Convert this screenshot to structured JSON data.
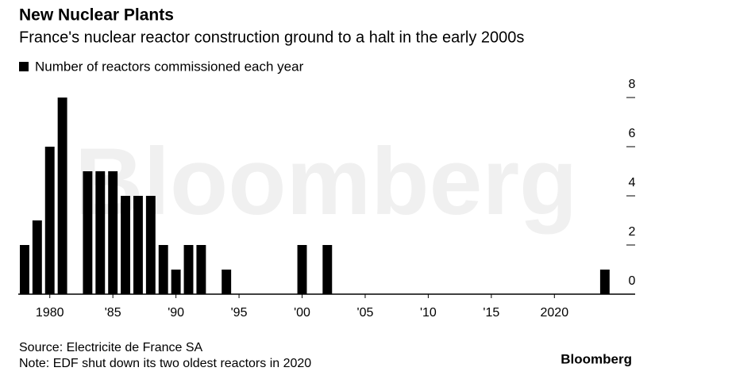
{
  "chart_data": {
    "type": "bar",
    "title": "New Nuclear Plants",
    "subtitle": "France's nuclear reactor construction ground to a halt in the early 2000s",
    "x": [
      1978,
      1979,
      1980,
      1981,
      1982,
      1983,
      1984,
      1985,
      1986,
      1987,
      1988,
      1989,
      1990,
      1991,
      1992,
      1993,
      1994,
      1995,
      1996,
      1997,
      1998,
      1999,
      2000,
      2001,
      2002,
      2003,
      2004,
      2005,
      2006,
      2007,
      2008,
      2009,
      2010,
      2011,
      2012,
      2013,
      2014,
      2015,
      2016,
      2017,
      2018,
      2019,
      2020,
      2021,
      2022,
      2023,
      2024
    ],
    "series": [
      {
        "name": "Number of reactors commissioned each year",
        "color": "#000000",
        "values": [
          2,
          3,
          6,
          8,
          0,
          5,
          5,
          5,
          4,
          4,
          4,
          2,
          1,
          2,
          2,
          0,
          1,
          0,
          0,
          0,
          0,
          0,
          2,
          0,
          2,
          0,
          0,
          0,
          0,
          0,
          0,
          0,
          0,
          0,
          0,
          0,
          0,
          0,
          0,
          0,
          0,
          0,
          0,
          0,
          0,
          0,
          1
        ]
      }
    ],
    "xlim": [
      1977.5,
      2026.4
    ],
    "xticks": [
      1980,
      {
        "value": 1985,
        "label": "'85"
      },
      {
        "value": 1990,
        "label": "'90"
      },
      {
        "value": 1995,
        "label": "'95"
      },
      {
        "value": 2000,
        "label": "'00"
      },
      {
        "value": 2005,
        "label": "'05"
      },
      {
        "value": 2010,
        "label": "'10"
      },
      {
        "value": 2015,
        "label": "'15"
      },
      2020
    ],
    "ylim": [
      0,
      8
    ],
    "yticks": [
      0,
      2,
      4,
      6,
      8
    ],
    "watermark": "Bloomberg",
    "source": "Source: Electricite de France SA",
    "note": "Note: EDF shut down its two oldest reactors in 2020",
    "brand": "Bloomberg"
  }
}
